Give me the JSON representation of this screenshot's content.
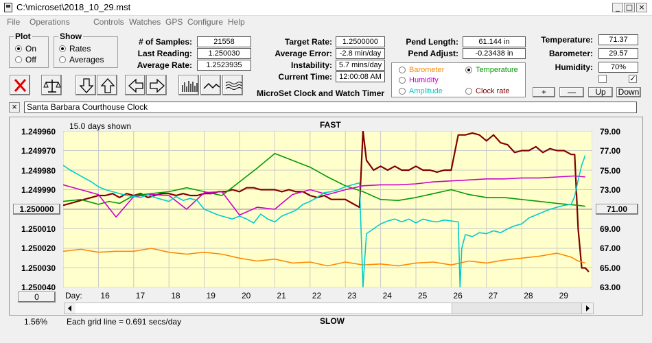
{
  "window": {
    "title": "C:\\microset\\2018_10_29.mst"
  },
  "menu": [
    "File",
    "Operations",
    "Controls",
    "Watches",
    "GPS",
    "Configure",
    "Help"
  ],
  "plot_group": {
    "legend": "Plot",
    "on": "On",
    "off": "Off",
    "selected": "On"
  },
  "show_group": {
    "legend": "Show",
    "rates": "Rates",
    "averages": "Averages",
    "selected": "Rates"
  },
  "stats": {
    "samples_label": "# of Samples:",
    "samples": "21558",
    "last_label": "Last Reading:",
    "last": "1.250030",
    "avg_label": "Average Rate:",
    "avg": "1.2523935"
  },
  "rates": {
    "target_label": "Target Rate:",
    "target": "1.2500000",
    "error_label": "Average Error:",
    "error": "-2.8 min/day",
    "instab_label": "Instability:",
    "instab": "5.7 mins/day",
    "time_label": "Current Time:",
    "time": "12:00:08 AM",
    "caption": "MicroSet Clock and Watch Timer"
  },
  "pend": {
    "length_label": "Pend Length:",
    "length": "61.144 in",
    "adjust_label": "Pend Adjust:",
    "adjust": "-0.23438 in"
  },
  "sources": {
    "barometer": "Barometer",
    "temperature": "Temperature",
    "humidity": "Humidity",
    "amplitude": "Amplitude",
    "clock_rate": "Clock rate",
    "selected": "Temperature",
    "colors": {
      "barometer": "#ff8800",
      "temperature": "#009900",
      "humidity": "#cc00cc",
      "amplitude": "#00cccc",
      "clock_rate": "#800000"
    }
  },
  "env": {
    "temp_label": "Temperature:",
    "temp": "71.37",
    "baro_label": "Barometer:",
    "baro": "29.57",
    "hum_label": "Humidity:",
    "hum": "70%",
    "chk1": "",
    "chk2": "✓"
  },
  "buttons": {
    "plus": "+",
    "minus": "—",
    "up": "Up",
    "down": "Down"
  },
  "clock": {
    "close": "×",
    "name": "Santa Barbara Courthouse Clock"
  },
  "chart": {
    "days_shown": "15.0 days shown",
    "fast": "FAST",
    "slow": "SLOW",
    "day_label": "Day:",
    "left_ticks": [
      "1.249960",
      "1.249970",
      "1.249980",
      "1.249990",
      "1.250000",
      "1.250010",
      "1.250020",
      "1.250030",
      "1.250040"
    ],
    "right_ticks": [
      "79.00",
      "77.00",
      "75.00",
      "73.00",
      "71.00",
      "69.00",
      "67.00",
      "65.00",
      "63.00"
    ],
    "left_mid_button": "1.250000",
    "right_mid_button": "71.00",
    "zero_button": "0",
    "x_ticks": [
      "16",
      "17",
      "18",
      "19",
      "20",
      "21",
      "22",
      "23",
      "24",
      "25",
      "26",
      "27",
      "28",
      "29"
    ],
    "percent": "1.56%",
    "grid_note": "Each grid line = 0.691 secs/day"
  },
  "chart_data": {
    "type": "line",
    "x_range": [
      15.0,
      30.0
    ],
    "y_left_range": [
      1.24996,
      1.25004
    ],
    "y_right_range": [
      63,
      79
    ],
    "grid": true,
    "series": [
      {
        "name": "Clock rate",
        "axis": "left",
        "color": "#800000",
        "x": [
          15.0,
          15.2,
          15.4,
          15.6,
          15.8,
          16.0,
          16.2,
          16.4,
          16.6,
          16.8,
          17.0,
          17.2,
          17.4,
          17.6,
          17.8,
          18.0,
          18.2,
          18.4,
          18.6,
          18.8,
          19.0,
          19.2,
          19.4,
          19.6,
          19.8,
          20.0,
          20.2,
          20.4,
          20.6,
          20.8,
          21.0,
          21.2,
          21.4,
          21.6,
          21.8,
          22.0,
          22.2,
          22.4,
          22.6,
          22.8,
          23.0,
          23.2,
          23.4,
          23.5,
          23.6,
          23.8,
          24.0,
          24.2,
          24.4,
          24.6,
          24.8,
          25.0,
          25.2,
          25.4,
          25.6,
          25.8,
          26.0,
          26.2,
          26.3,
          26.4,
          26.6,
          26.8,
          27.0,
          27.2,
          27.4,
          27.6,
          27.8,
          28.0,
          28.2,
          28.4,
          28.6,
          28.8,
          29.0,
          29.2,
          29.4,
          29.5,
          29.6,
          29.7,
          29.8,
          29.9
        ],
        "y": [
          1.249998,
          1.249997,
          1.249996,
          1.249995,
          1.249994,
          1.249993,
          1.249993,
          1.249992,
          1.249994,
          1.249992,
          1.249993,
          1.249992,
          1.249994,
          1.249993,
          1.249992,
          1.249992,
          1.249993,
          1.249992,
          1.249993,
          1.249993,
          1.249992,
          1.249992,
          1.249991,
          1.249991,
          1.24999,
          1.249991,
          1.249989,
          1.249989,
          1.24999,
          1.24999,
          1.24999,
          1.249991,
          1.24999,
          1.249991,
          1.249991,
          1.249993,
          1.249994,
          1.249993,
          1.249995,
          1.249995,
          1.249995,
          1.249997,
          1.249999,
          1.24996,
          1.249975,
          1.24998,
          1.249978,
          1.24998,
          1.249978,
          1.24998,
          1.24998,
          1.249978,
          1.24998,
          1.24998,
          1.249981,
          1.24998,
          1.24998,
          1.249962,
          1.249962,
          1.249962,
          1.249961,
          1.249962,
          1.249965,
          1.249962,
          1.249966,
          1.249967,
          1.249971,
          1.24997,
          1.24997,
          1.249968,
          1.249971,
          1.249969,
          1.24997,
          1.24997,
          1.249972,
          1.249972,
          1.25001,
          1.25003,
          1.25003,
          1.250032
        ]
      },
      {
        "name": "Temperature",
        "axis": "right",
        "color": "#009900",
        "x": [
          15.0,
          15.5,
          16.0,
          16.3,
          16.6,
          17.0,
          17.5,
          18.0,
          18.5,
          19.0,
          19.5,
          20.0,
          20.5,
          21.0,
          21.5,
          22.0,
          22.5,
          23.0,
          23.5,
          24.0,
          24.5,
          25.0,
          25.5,
          26.0,
          26.5,
          27.0,
          27.5,
          28.0,
          28.5,
          29.0,
          29.3,
          29.6,
          29.8
        ],
        "y": [
          71.8,
          72.0,
          71.5,
          71.8,
          71.6,
          72.4,
          72.6,
          72.8,
          73.2,
          72.8,
          72.4,
          73.8,
          75.2,
          76.7,
          76.0,
          75.3,
          74.3,
          73.4,
          72.8,
          72.0,
          71.9,
          72.2,
          72.6,
          73.0,
          72.5,
          72.2,
          72.2,
          72.0,
          71.8,
          71.6,
          71.5,
          71.4,
          71.3
        ]
      },
      {
        "name": "Humidity",
        "axis": "right",
        "color": "#cc00cc",
        "x": [
          15.0,
          15.5,
          16.0,
          16.5,
          17.0,
          17.5,
          18.0,
          18.5,
          19.0,
          19.5,
          20.0,
          20.5,
          21.0,
          21.5,
          22.0,
          22.5,
          23.0,
          23.5,
          24.0,
          24.5,
          25.0,
          25.5,
          26.0,
          26.5,
          27.0,
          27.5,
          28.0,
          28.5,
          29.0,
          29.5,
          29.8
        ],
        "y": [
          73.5,
          73.0,
          72.5,
          70.2,
          72.3,
          72.5,
          72.4,
          71.0,
          72.7,
          72.8,
          70.4,
          71.2,
          71.0,
          72.5,
          73.0,
          72.5,
          73.0,
          73.4,
          73.5,
          73.5,
          73.6,
          73.8,
          73.9,
          74.0,
          74.1,
          74.1,
          74.2,
          74.2,
          74.3,
          74.4,
          74.3
        ]
      },
      {
        "name": "Barometer",
        "axis": "right",
        "color": "#ff8800",
        "x": [
          15.0,
          15.5,
          16.0,
          16.5,
          17.0,
          17.5,
          18.0,
          18.5,
          19.0,
          19.5,
          20.0,
          20.5,
          21.0,
          21.5,
          22.0,
          22.5,
          23.0,
          23.5,
          24.0,
          24.5,
          25.0,
          25.5,
          26.0,
          26.5,
          27.0,
          27.5,
          28.0,
          28.5,
          29.0,
          29.4,
          29.6,
          29.8
        ],
        "y": [
          66.7,
          66.9,
          66.6,
          66.7,
          66.7,
          67.0,
          66.6,
          66.4,
          66.6,
          66.4,
          66.0,
          65.7,
          65.9,
          65.5,
          65.6,
          65.2,
          65.6,
          65.3,
          65.4,
          65.2,
          65.5,
          65.6,
          65.3,
          65.7,
          65.5,
          65.8,
          66.0,
          66.2,
          66.5,
          66.1,
          65.7,
          65.5
        ]
      },
      {
        "name": "Amplitude",
        "axis": "right",
        "color": "#00cccc",
        "x": [
          15.0,
          15.2,
          15.4,
          15.6,
          15.8,
          16.0,
          16.2,
          16.4,
          16.6,
          16.8,
          17.0,
          17.2,
          17.4,
          17.6,
          17.8,
          18.0,
          18.2,
          18.4,
          18.6,
          18.8,
          19.0,
          19.2,
          19.4,
          19.6,
          19.8,
          20.0,
          20.2,
          20.4,
          20.6,
          20.8,
          21.0,
          21.2,
          21.4,
          21.6,
          21.8,
          22.0,
          22.2,
          22.4,
          22.6,
          22.8,
          23.0,
          23.2,
          23.4,
          23.5,
          23.55,
          23.6,
          23.8,
          24.0,
          24.2,
          24.4,
          24.6,
          24.8,
          25.0,
          25.2,
          25.4,
          25.6,
          25.8,
          26.0,
          26.2,
          26.25,
          26.3,
          26.4,
          26.6,
          26.8,
          27.0,
          27.2,
          27.4,
          27.6,
          27.8,
          28.0,
          28.2,
          28.4,
          28.6,
          28.8,
          29.0,
          29.2,
          29.4,
          29.5,
          29.6,
          29.7,
          29.8
        ],
        "y": [
          75.5,
          75.0,
          74.6,
          74.2,
          73.8,
          73.3,
          73.0,
          72.8,
          72.6,
          72.4,
          72.3,
          72.2,
          72.5,
          72.2,
          72.0,
          71.8,
          72.3,
          71.9,
          72.1,
          71.9,
          71.0,
          70.7,
          70.4,
          70.2,
          70.0,
          70.3,
          70.0,
          69.6,
          70.5,
          70.0,
          69.7,
          70.3,
          70.6,
          70.9,
          71.5,
          71.8,
          72.2,
          72.7,
          72.8,
          73.0,
          73.3,
          73.5,
          73.7,
          63.0,
          66.0,
          68.5,
          69.0,
          69.5,
          69.8,
          70.0,
          69.7,
          70.0,
          69.6,
          70.0,
          69.8,
          69.7,
          69.9,
          69.8,
          69.7,
          63.0,
          67.0,
          68.4,
          68.2,
          68.6,
          68.5,
          68.8,
          68.6,
          69.0,
          69.3,
          69.5,
          70.1,
          70.4,
          70.7,
          71.0,
          71.2,
          71.4,
          71.5,
          72.3,
          74.0,
          75.5,
          76.5
        ]
      }
    ]
  }
}
